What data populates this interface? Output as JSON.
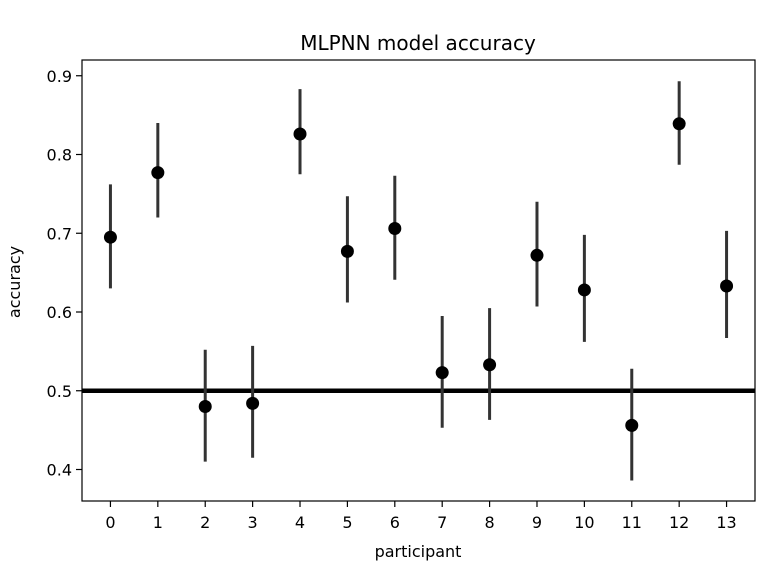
{
  "chart_data": {
    "type": "scatter",
    "title": "MLPNN model accuracy",
    "xlabel": "participant",
    "ylabel": "accuracy",
    "x": [
      0,
      1,
      2,
      3,
      4,
      5,
      6,
      7,
      8,
      9,
      10,
      11,
      12,
      13
    ],
    "x_tick_labels": [
      "0",
      "1",
      "2",
      "3",
      "4",
      "5",
      "6",
      "7",
      "8",
      "9",
      "10",
      "11",
      "12",
      "13"
    ],
    "y": [
      0.695,
      0.777,
      0.48,
      0.484,
      0.826,
      0.677,
      0.706,
      0.523,
      0.533,
      0.672,
      0.628,
      0.456,
      0.839,
      0.633
    ],
    "error_low": [
      0.63,
      0.72,
      0.41,
      0.415,
      0.775,
      0.612,
      0.641,
      0.453,
      0.463,
      0.607,
      0.562,
      0.386,
      0.787,
      0.567
    ],
    "error_high": [
      0.762,
      0.84,
      0.552,
      0.557,
      0.883,
      0.747,
      0.773,
      0.595,
      0.605,
      0.74,
      0.698,
      0.528,
      0.893,
      0.703
    ],
    "y_ticks": [
      0.4,
      0.5,
      0.6,
      0.7,
      0.8,
      0.9
    ],
    "y_tick_labels": [
      "0.4",
      "0.5",
      "0.6",
      "0.7",
      "0.8",
      "0.9"
    ],
    "xlim": [
      -0.6,
      13.6
    ],
    "ylim": [
      0.36,
      0.92
    ],
    "reference_line": {
      "y": 0.5
    },
    "grid": false,
    "colors": {
      "points": "#000000",
      "errorbars": "#333333",
      "reference_line": "#000000"
    }
  }
}
